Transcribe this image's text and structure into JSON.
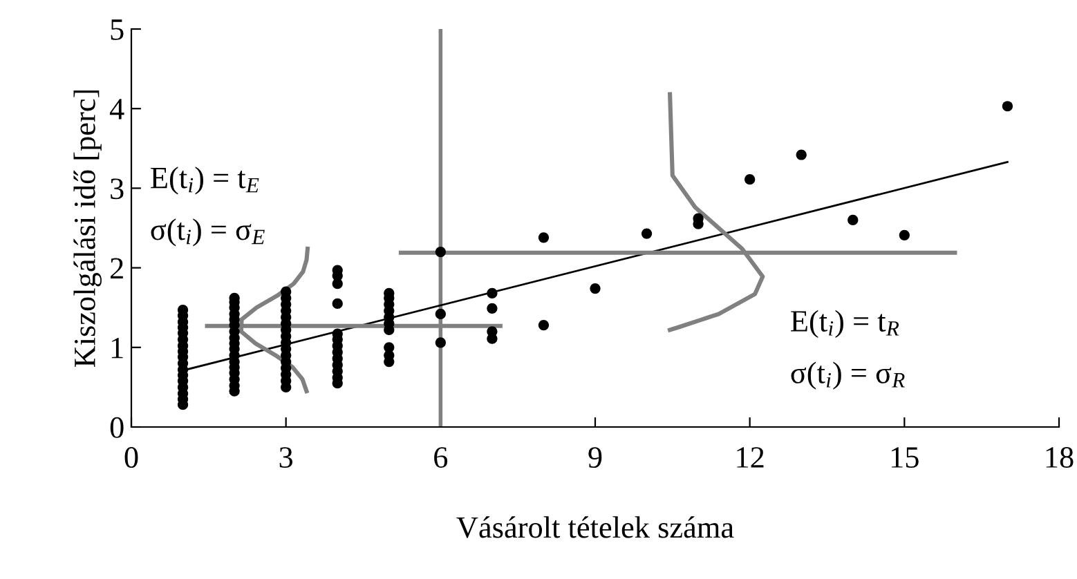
{
  "chart_data": {
    "type": "scatter",
    "xlabel": "Vásárolt tételek száma",
    "ylabel": "Kiszolgálási idő [perc]",
    "xlim": [
      0,
      18
    ],
    "xticks": [
      0,
      3,
      6,
      9,
      12,
      15,
      18
    ],
    "ylim": [
      0,
      5
    ],
    "yticks": [
      0,
      1,
      2,
      3,
      4,
      5
    ],
    "grid": false,
    "series": [
      {
        "marker": "circle",
        "color": "#000000",
        "x": [
          1,
          1,
          1,
          1,
          1,
          1,
          1,
          1,
          1,
          1,
          1,
          1,
          1,
          1,
          1,
          1,
          1,
          2,
          2,
          2,
          2,
          2,
          2,
          2,
          2,
          2,
          2,
          2,
          2,
          2,
          2,
          2,
          2,
          2,
          3,
          3,
          3,
          3,
          3,
          3,
          3,
          3,
          3,
          3,
          3,
          3,
          3,
          3,
          3,
          3,
          4,
          4,
          4,
          4,
          4,
          4,
          4,
          4,
          4,
          4,
          4,
          4,
          4,
          5,
          5,
          5,
          5,
          5,
          5,
          5,
          5,
          5,
          5,
          6,
          6,
          6,
          7,
          7,
          7,
          7,
          8,
          8,
          9,
          10,
          11,
          11,
          12,
          13,
          14,
          15,
          17
        ],
        "values": [
          0.28,
          0.35,
          0.42,
          0.5,
          0.58,
          0.65,
          0.72,
          0.8,
          0.88,
          0.95,
          1.02,
          1.1,
          1.18,
          1.25,
          1.32,
          1.4,
          1.47,
          0.45,
          0.52,
          0.6,
          0.68,
          0.75,
          0.82,
          0.9,
          0.98,
          1.05,
          1.12,
          1.2,
          1.28,
          1.35,
          1.42,
          1.5,
          1.57,
          1.62,
          0.5,
          0.58,
          0.66,
          0.74,
          0.82,
          0.9,
          0.98,
          1.06,
          1.14,
          1.22,
          1.3,
          1.38,
          1.46,
          1.54,
          1.62,
          1.7,
          0.55,
          0.62,
          0.7,
          0.78,
          0.86,
          0.94,
          1.02,
          1.1,
          1.17,
          1.55,
          1.8,
          1.9,
          1.97,
          0.82,
          0.9,
          1.0,
          1.22,
          1.3,
          1.38,
          1.46,
          1.54,
          1.62,
          1.68,
          2.2,
          1.42,
          1.06,
          1.68,
          1.49,
          1.2,
          1.11,
          2.38,
          1.28,
          1.74,
          2.43,
          2.55,
          2.62,
          3.11,
          3.42,
          2.6,
          2.41,
          4.03
        ]
      },
      {
        "type": "line",
        "color": "#000000",
        "x": [
          1,
          17
        ],
        "values": [
          0.71,
          3.33
        ]
      },
      {
        "type": "line",
        "color": "#808080",
        "x": [
          1.47,
          7.16
        ],
        "values": [
          1.27,
          1.27
        ]
      },
      {
        "type": "line",
        "color": "#808080",
        "x": [
          5.23,
          15.98
        ],
        "values": [
          2.19,
          2.19
        ]
      },
      {
        "type": "line",
        "color": "#808080",
        "x": [
          3.4,
          3.32,
          3.13,
          2.8,
          2.41,
          2.13,
          2.14,
          2.43,
          2.83,
          3.15,
          3.33,
          3.4,
          3.42
        ],
        "values": [
          0.45,
          0.6,
          0.75,
          0.9,
          1.05,
          1.2,
          1.35,
          1.5,
          1.65,
          1.8,
          1.95,
          2.1,
          2.24
        ]
      },
      {
        "type": "line",
        "color": "#808080",
        "x": [
          10.45,
          10.5,
          10.94,
          11.85,
          12.25,
          12.1,
          11.4,
          10.6,
          10.45
        ],
        "values": [
          4.18,
          3.16,
          2.76,
          2.24,
          1.89,
          1.67,
          1.42,
          1.25,
          1.22
        ]
      }
    ],
    "ref_lines": [
      {
        "axis": "x",
        "value": 6,
        "color": "#808080"
      }
    ],
    "annotations": [
      "E(t$_{i}$) = t$_{E}$",
      "σ(t$_{i}$) = σ$_{E}$",
      "E(t$_{i}$) = t$_{R}$",
      "σ(t$_{i}$) = σ$_{R}$"
    ]
  }
}
